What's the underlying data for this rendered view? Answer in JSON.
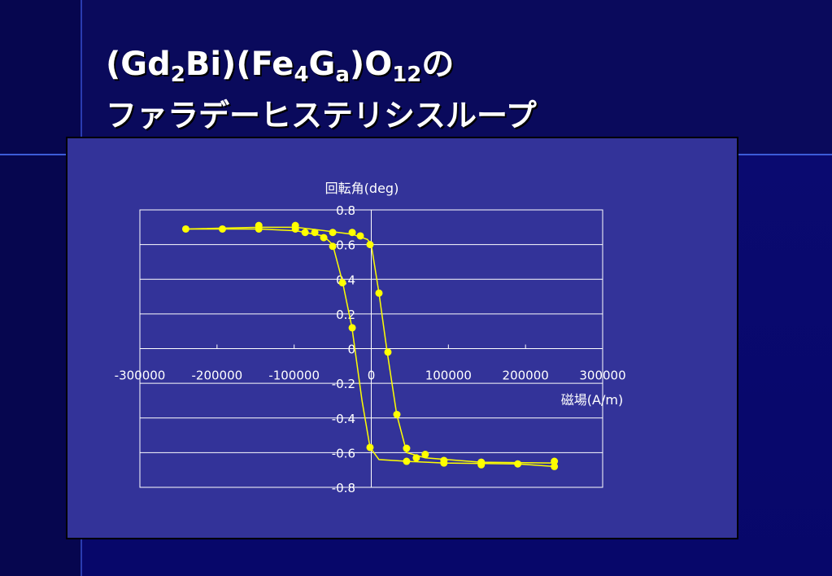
{
  "chart_data": {
    "type": "scatter",
    "title_parts": [
      "(Gd",
      "2",
      "Bi)(Fe",
      "4",
      "G",
      "a",
      ")O",
      "12",
      "の"
    ],
    "subtitle": "ファラデーヒステリシスループ",
    "y_label": "回転角(deg)",
    "x_label": "磁場(A/m)",
    "xlim": [
      -300000,
      300000
    ],
    "xticks": [
      -300000,
      -200000,
      -100000,
      0,
      100000,
      200000,
      300000
    ],
    "ylim": [
      -0.8,
      0.8
    ],
    "yticks": [
      0.8,
      0.6,
      0.4,
      0.2,
      0,
      -0.2,
      -0.4,
      -0.6,
      -0.8
    ],
    "grid": true,
    "color": "#ffff00",
    "x": [
      -240500,
      -193000,
      -145800,
      -145800,
      -98400,
      -98400,
      -85800,
      -73200,
      -61600,
      -50000,
      -50000,
      -37400,
      -24700,
      -24700,
      -14200,
      -1600,
      -1600,
      10000,
      21600,
      33200,
      45800,
      45800,
      58400,
      70000,
      94200,
      94200,
      142600,
      142600,
      190000,
      237400,
      237400
    ],
    "y": [
      0.69,
      0.69,
      0.71,
      0.69,
      0.71,
      0.69,
      0.67,
      0.67,
      0.64,
      0.67,
      0.59,
      0.38,
      0.67,
      0.12,
      0.65,
      0.6,
      -0.57,
      0.32,
      -0.02,
      -0.38,
      -0.575,
      -0.65,
      -0.63,
      -0.61,
      -0.645,
      -0.66,
      -0.655,
      -0.67,
      -0.665,
      -0.65,
      -0.68
    ],
    "curves": [
      {
        "x": [
          -240000,
          -145000,
          -98000,
          -60000,
          -25000,
          -5000,
          0,
          10000,
          20000,
          33000,
          46000,
          70000,
          142000,
          237000
        ],
        "y": [
          0.69,
          0.7,
          0.7,
          0.68,
          0.66,
          0.63,
          0.6,
          0.32,
          0,
          -0.38,
          -0.6,
          -0.63,
          -0.655,
          -0.66
        ]
      },
      {
        "x": [
          237000,
          190000,
          94000,
          46000,
          10000,
          -1600,
          -12000,
          -25000,
          -37000,
          -50000,
          -62000,
          -98000,
          -145000,
          -240000
        ],
        "y": [
          -0.68,
          -0.665,
          -0.66,
          -0.65,
          -0.64,
          -0.57,
          -0.3,
          0.12,
          0.38,
          0.6,
          0.65,
          0.68,
          0.69,
          0.69
        ]
      }
    ]
  }
}
